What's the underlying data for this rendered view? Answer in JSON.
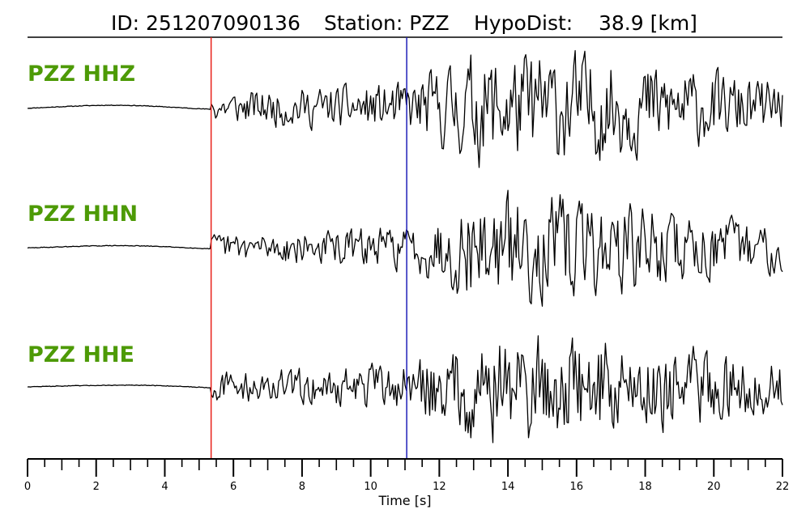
{
  "header": {
    "id_text": "ID: 251207090136",
    "station_text": "Station: PZZ",
    "hypodist_text": "HypoDist:    38.9 [km]"
  },
  "chart_data": {
    "type": "line",
    "xlabel": "Time [s]",
    "xlim": [
      0,
      22
    ],
    "x_major_ticks": [
      0,
      2,
      4,
      6,
      8,
      10,
      12,
      14,
      16,
      18,
      20,
      22
    ],
    "x_minor_tick_step": 0.5,
    "traces": [
      {
        "label": "PZZ HHZ",
        "baseline_level": 0.0,
        "noise_amp": 0.06,
        "p_amp": 0.45,
        "s_amp": 1.0,
        "tail_amp": 0.45,
        "seed": 11
      },
      {
        "label": "PZZ HHN",
        "baseline_level": 0.0,
        "noise_amp": 0.04,
        "p_amp": 0.38,
        "s_amp": 0.95,
        "tail_amp": 0.4,
        "seed": 29
      },
      {
        "label": "PZZ HHE",
        "baseline_level": 0.0,
        "noise_amp": 0.05,
        "p_amp": 0.42,
        "s_amp": 1.0,
        "tail_amp": 0.45,
        "seed": 47
      }
    ],
    "picks": [
      {
        "phase": "P",
        "time": 5.35,
        "color": "#e8201a"
      },
      {
        "phase": "S",
        "time": 11.05,
        "color": "#1f1fb8"
      }
    ],
    "trace_color": "#000000",
    "label_color": "#4d9a06"
  }
}
